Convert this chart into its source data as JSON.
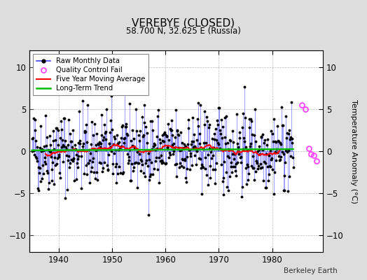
{
  "title": "VEREBYE (CLOSED)",
  "subtitle": "58.700 N, 32.625 E (Russia)",
  "ylabel": "Temperature Anomaly (°C)",
  "credit": "Berkeley Earth",
  "xlim": [
    1934.5,
    1989.5
  ],
  "ylim": [
    -12,
    12
  ],
  "yticks": [
    -10,
    -5,
    0,
    5,
    10
  ],
  "xticks": [
    1940,
    1950,
    1960,
    1970,
    1980
  ],
  "bg_color": "#dddddd",
  "plot_bg_color": "#ffffff",
  "line_color": "#4444ff",
  "line_fill_color": "#aaaaff",
  "dot_color": "#000000",
  "ma_color": "#ff0000",
  "trend_color": "#00bb00",
  "qc_color": "#ff44ff",
  "seed": 42,
  "n_months": 588,
  "start_year": 1935.0,
  "trend_slope": 0.003,
  "trend_intercept": 0.1,
  "data_std": 2.8
}
